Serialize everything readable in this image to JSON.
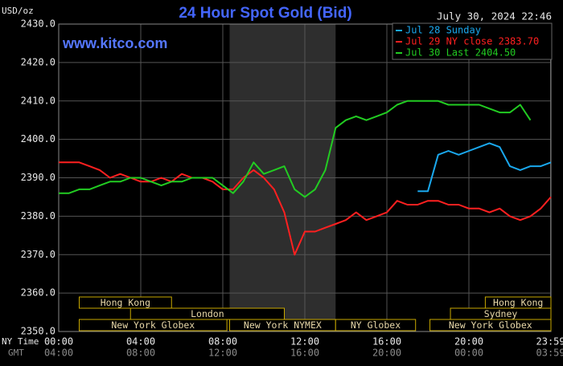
{
  "chart_data": {
    "type": "line",
    "title": "24 Hour Spot Gold (Bid)",
    "y_label": "USD/oz",
    "date_label": "July 30, 2024 22:46",
    "watermark": "www.kitco.com",
    "x_label": "NY Time",
    "x2_label": "GMT",
    "x": [
      0,
      0.5,
      1,
      1.5,
      2,
      2.5,
      3,
      3.5,
      4,
      4.5,
      5,
      5.5,
      6,
      6.5,
      7,
      7.5,
      8,
      8.5,
      9,
      9.5,
      10,
      10.5,
      11,
      11.5,
      12,
      12.5,
      13,
      13.5,
      14,
      14.5,
      15,
      15.5,
      16,
      16.5,
      17,
      17.5,
      18,
      18.5,
      19,
      19.5,
      20,
      20.5,
      21,
      21.5,
      22,
      22.5,
      23,
      23.5,
      24
    ],
    "series": [
      {
        "name": "Jul 28 Sunday",
        "color": "#1aa8ee",
        "values": [
          null,
          null,
          null,
          null,
          null,
          null,
          null,
          null,
          null,
          null,
          null,
          null,
          null,
          null,
          null,
          null,
          null,
          null,
          null,
          null,
          null,
          null,
          null,
          null,
          null,
          null,
          null,
          null,
          null,
          null,
          null,
          null,
          null,
          null,
          null,
          2386.5,
          2386.5,
          2396,
          2397,
          2396,
          2397,
          2398,
          2399,
          2398,
          2393,
          2392,
          2393,
          2393,
          2394
        ]
      },
      {
        "name": "Jul 29 NY close 2383.70",
        "color": "#ff2020",
        "values": [
          2394,
          2394,
          2394,
          2393,
          2392,
          2390,
          2391,
          2390,
          2389,
          2389,
          2390,
          2389,
          2391,
          2390,
          2390,
          2389,
          2387,
          2387,
          2390,
          2392,
          2390,
          2387,
          2381,
          2370,
          2376,
          2376,
          2377,
          2378,
          2379,
          2381,
          2379,
          2380,
          2381,
          2384,
          2383,
          2383,
          2384,
          2384,
          2383,
          2383,
          2382,
          2382,
          2381,
          2382,
          2380,
          2379,
          2380,
          2382,
          2385
        ]
      },
      {
        "name": "Jul 30 Last 2404.50",
        "color": "#22cc22",
        "values": [
          2386,
          2386,
          2387,
          2387,
          2388,
          2389,
          2389,
          2390,
          2390,
          2389,
          2388,
          2389,
          2389,
          2390,
          2390,
          2390,
          2388,
          2386,
          2389,
          2394,
          2391,
          2392,
          2393,
          2387,
          2385,
          2387,
          2392,
          2403,
          2405,
          2406,
          2405,
          2406,
          2407,
          2409,
          2410,
          2410,
          2410,
          2410,
          2409,
          2409,
          2409,
          2409,
          2408,
          2407,
          2407,
          2409,
          2405,
          null,
          null
        ]
      }
    ],
    "xlim": [
      0,
      24
    ],
    "ylim": [
      2350,
      2430
    ],
    "yticks": [
      {
        "value": 2350,
        "label": "2350.0"
      },
      {
        "value": 2360,
        "label": "2360.0"
      },
      {
        "value": 2370,
        "label": "2370.0"
      },
      {
        "value": 2380,
        "label": "2380.0"
      },
      {
        "value": 2390,
        "label": "2390.0"
      },
      {
        "value": 2400,
        "label": "2400.0"
      },
      {
        "value": 2410,
        "label": "2410.0"
      },
      {
        "value": 2420,
        "label": "2420.0"
      },
      {
        "value": 2430,
        "label": "2430.0"
      }
    ],
    "xticks": [
      {
        "value": 0,
        "label": "00:00"
      },
      {
        "value": 4,
        "label": "04:00"
      },
      {
        "value": 8,
        "label": "08:00"
      },
      {
        "value": 12,
        "label": "12:00"
      },
      {
        "value": 16,
        "label": "16:00"
      },
      {
        "value": 20,
        "label": "20:00"
      },
      {
        "value": 23.983,
        "label": "23:59"
      }
    ],
    "gmt_ticks": [
      {
        "value": 0,
        "label": "04:00"
      },
      {
        "value": 4,
        "label": "08:00"
      },
      {
        "value": 8,
        "label": "12:00"
      },
      {
        "value": 12,
        "label": "16:00"
      },
      {
        "value": 16,
        "label": "20:00"
      },
      {
        "value": 20,
        "label": "00:00"
      },
      {
        "value": 23.983,
        "label": "03:59"
      }
    ],
    "grid": true,
    "shaded_region": [
      8.333,
      13.5
    ],
    "sessions": [
      {
        "name": "Hong Kong",
        "row": 0,
        "start": 1.0,
        "end": 5.5
      },
      {
        "name": "London",
        "row": 1,
        "start": 3.5,
        "end": 11.0
      },
      {
        "name": "New York Globex",
        "row": 2,
        "start": 1.0,
        "end": 8.2
      },
      {
        "name": "New York NYMEX",
        "row": 2,
        "start": 8.333,
        "end": 13.5
      },
      {
        "name": "NY Globex",
        "row": 2,
        "start": 13.5,
        "end": 17.4
      },
      {
        "name": "Sydney",
        "row": 1,
        "start": 19.1,
        "end": 24
      },
      {
        "name": "Hong Kong",
        "row": 0,
        "start": 20.8,
        "end": 24
      },
      {
        "name": "New York Globex",
        "row": 2,
        "start": 18.1,
        "end": 24
      }
    ]
  }
}
